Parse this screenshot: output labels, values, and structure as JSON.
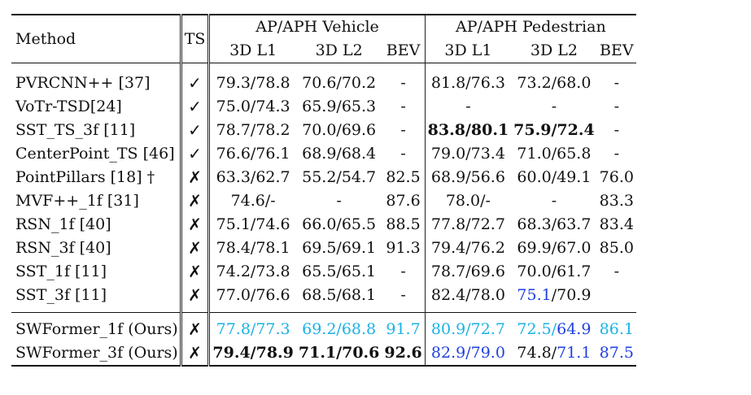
{
  "header": {
    "method": "Method",
    "ts": "TS",
    "vehicle_group": "AP/APH Vehicle",
    "pedestrian_group": "AP/APH Pedestrian",
    "sub": [
      "3D L1",
      "3D L2",
      "BEV",
      "3D L1",
      "3D L2",
      "BEV"
    ]
  },
  "marks": {
    "yes": "✓",
    "no": "✗"
  },
  "rows": [
    {
      "method": "PVRCNN++ [37]",
      "ts": "✓",
      "v_l1": "79.3/78.8",
      "v_l2": "70.6/70.2",
      "v_bev": "-",
      "p_l1": "81.8/76.3",
      "p_l2": "73.2/68.0",
      "p_bev": "-"
    },
    {
      "method": "VoTr-TSD[24]",
      "ts": "✓",
      "v_l1": "75.0/74.3",
      "v_l2": "65.9/65.3",
      "v_bev": "-",
      "p_l1": "-",
      "p_l2": "-",
      "p_bev": "-"
    },
    {
      "method": "SST_TS_3f [11]",
      "ts": "✓",
      "v_l1": "78.7/78.2",
      "v_l2": "70.0/69.6",
      "v_bev": "-",
      "p_l1": "83.8/80.1",
      "p_l2": "75.9/72.4",
      "p_bev": "-"
    },
    {
      "method": "CenterPoint_TS [46]",
      "ts": "✓",
      "v_l1": "76.6/76.1",
      "v_l2": "68.9/68.4",
      "v_bev": "-",
      "p_l1": "79.0/73.4",
      "p_l2": "71.0/65.8",
      "p_bev": "-"
    },
    {
      "method": "PointPillars [18] †",
      "ts": "✗",
      "v_l1": "63.3/62.7",
      "v_l2": "55.2/54.7",
      "v_bev": "82.5",
      "p_l1": "68.9/56.6",
      "p_l2": "60.0/49.1",
      "p_bev": "76.0"
    },
    {
      "method": "MVF++_1f [31]",
      "ts": "✗",
      "v_l1": "74.6/-",
      "v_l2": "-",
      "v_bev": "87.6",
      "p_l1": "78.0/-",
      "p_l2": "-",
      "p_bev": "83.3"
    },
    {
      "method": "RSN_1f [40]",
      "ts": "✗",
      "v_l1": "75.1/74.6",
      "v_l2": "66.0/65.5",
      "v_bev": "88.5",
      "p_l1": "77.8/72.7",
      "p_l2": "68.3/63.7",
      "p_bev": "83.4"
    },
    {
      "method": "RSN_3f [40]",
      "ts": "✗",
      "v_l1": "78.4/78.1",
      "v_l2": "69.5/69.1",
      "v_bev": "91.3",
      "p_l1": "79.4/76.2",
      "p_l2": "69.9/67.0",
      "p_bev": "85.0"
    },
    {
      "method": "SST_1f [11]",
      "ts": "✗",
      "v_l1": "74.2/73.8",
      "v_l2": "65.5/65.1",
      "v_bev": "-",
      "p_l1": "78.7/69.6",
      "p_l2": "70.0/61.7",
      "p_bev": "-"
    },
    {
      "method": "SST_3f [11]",
      "ts": "✗",
      "v_l1": "77.0/76.6",
      "v_l2": "68.5/68.1",
      "v_bev": "-",
      "p_l1": "82.4/78.0",
      "p_l2_a": "75.1",
      "p_l2_b": "/70.9",
      "p_bev": ""
    }
  ],
  "ours": [
    {
      "method": "SWFormer_1f (Ours)",
      "ts": "✗",
      "v_l1": "77.8/77.3",
      "v_l2": "69.2/68.8",
      "v_bev": "91.7",
      "p_l1": "80.9/72.7",
      "p_l2_a": "72.5/",
      "p_l2_b": "64.9",
      "p_bev": "86.1"
    },
    {
      "method": "SWFormer_3f (Ours)",
      "ts": "✗",
      "v_l1": "79.4/78.9",
      "v_l2": "71.1/70.6",
      "v_bev": "92.6",
      "p_l1": "82.9/79.0",
      "p_l2_a": "74.8/",
      "p_l2_b": "71.1",
      "p_bev": "87.5"
    }
  ],
  "colors": {
    "cyan": "#19b2e6",
    "blue": "#1f3fe0",
    "text": "#111111"
  }
}
